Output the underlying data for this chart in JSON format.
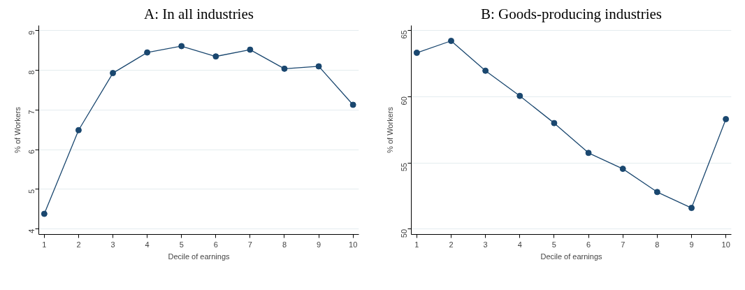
{
  "chart_data": [
    {
      "type": "line",
      "title": "A: In all industries",
      "xlabel": "Decile of earnings",
      "ylabel": "% of Workers",
      "x": [
        1,
        2,
        3,
        4,
        5,
        6,
        7,
        8,
        9,
        10
      ],
      "series": [
        {
          "color": "#1a476f",
          "values": [
            4.38,
            6.49,
            7.93,
            8.45,
            8.61,
            8.35,
            8.52,
            8.04,
            8.1,
            7.13
          ]
        }
      ],
      "xlim": [
        0.84,
        10.17
      ],
      "ylim": [
        3.86,
        9.13
      ],
      "xticks": [
        1,
        2,
        3,
        4,
        5,
        6,
        7,
        8,
        9,
        10
      ],
      "yticks": [
        4,
        5,
        6,
        7,
        8,
        9
      ],
      "grid": "y",
      "marker": "circle",
      "line_style": "solid"
    },
    {
      "type": "line",
      "title": "B: Goods-producing industries",
      "xlabel": "Decile of earnings",
      "ylabel": "% of Workers",
      "x": [
        1,
        2,
        3,
        4,
        5,
        6,
        7,
        8,
        9,
        10
      ],
      "series": [
        {
          "color": "#1a476f",
          "values": [
            63.3,
            64.2,
            61.95,
            60.05,
            58.0,
            55.75,
            54.55,
            52.8,
            51.6,
            58.3
          ]
        }
      ],
      "xlim": [
        0.84,
        10.16
      ],
      "ylim": [
        49.6,
        65.36
      ],
      "xticks": [
        1,
        2,
        3,
        4,
        5,
        6,
        7,
        8,
        9,
        10
      ],
      "yticks": [
        50,
        55,
        60,
        65
      ],
      "grid": "y",
      "marker": "circle",
      "line_style": "solid"
    }
  ]
}
